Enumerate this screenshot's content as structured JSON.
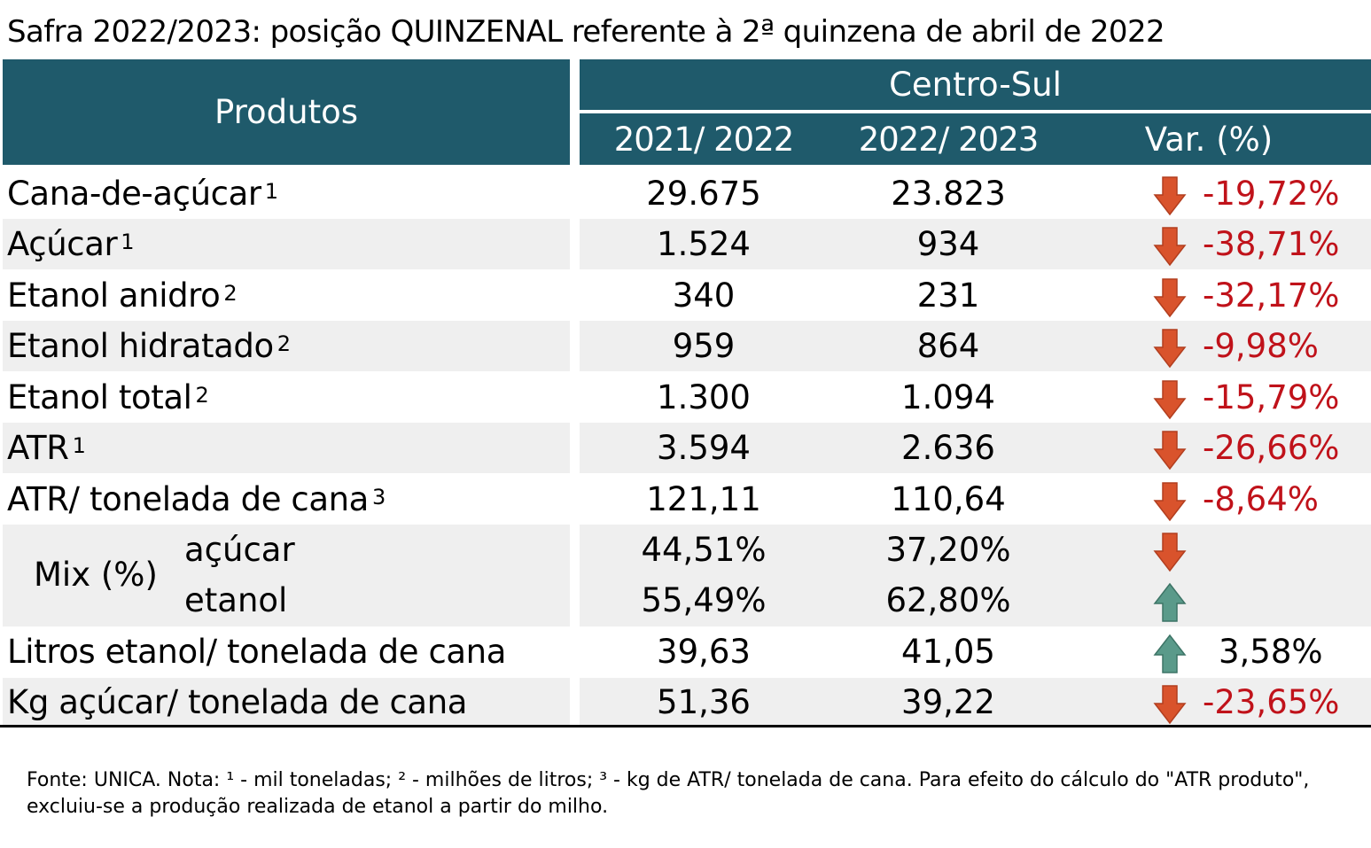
{
  "title": "Safra 2022/2023: posição QUINZENAL referente à 2ª quinzena de abril de 2022",
  "header": {
    "produtos": "Produtos",
    "region": "Centro-Sul",
    "col1": "2021/ 2022",
    "col2": "2022/ 2023",
    "col3": "Var. (%)"
  },
  "rows": [
    {
      "label": "Cana-de-açúcar",
      "sup": "1",
      "v1": "29.675",
      "v2": "23.823",
      "var": "-19,72%",
      "dir": "down"
    },
    {
      "label": "Açúcar",
      "sup": "1",
      "v1": "1.524",
      "v2": "934",
      "var": "-38,71%",
      "dir": "down"
    },
    {
      "label": "Etanol anidro",
      "sup": "2",
      "v1": "340",
      "v2": "231",
      "var": "-32,17%",
      "dir": "down"
    },
    {
      "label": "Etanol hidratado",
      "sup": "2",
      "v1": "959",
      "v2": "864",
      "var": "-9,98%",
      "dir": "down"
    },
    {
      "label": "Etanol total",
      "sup": "2",
      "v1": "1.300",
      "v2": "1.094",
      "var": "-15,79%",
      "dir": "down"
    },
    {
      "label": "ATR",
      "sup": "1",
      "v1": "3.594",
      "v2": "2.636",
      "var": "-26,66%",
      "dir": "down"
    },
    {
      "label": "ATR/ tonelada de cana",
      "sup": "3",
      "v1": "121,11",
      "v2": "110,64",
      "var": "-8,64%",
      "dir": "down"
    }
  ],
  "mix": {
    "label": "Mix (%)",
    "acucar": {
      "label": "açúcar",
      "v1": "44,51%",
      "v2": "37,20%",
      "dir": "down"
    },
    "etanol": {
      "label": "etanol",
      "v1": "55,49%",
      "v2": "62,80%",
      "dir": "up"
    }
  },
  "litros": {
    "label": "Litros etanol/ tonelada de cana",
    "v1": "39,63",
    "v2": "41,05",
    "var": "3,58%",
    "dir": "up"
  },
  "kg": {
    "label": "Kg açúcar/ tonelada de cana",
    "v1": "51,36",
    "v2": "39,22",
    "var": "-23,65%",
    "dir": "down"
  },
  "note": "Fonte: UNICA. Nota: ¹ - mil toneladas; ² - milhões de litros; ³ - kg de ATR/ tonelada de cana. Para efeito do cálculo do \"ATR produto\", excluiu-se a produção realizada de etanol a partir do milho.",
  "colors": {
    "header": "#1f5a6b",
    "stripe": "#efefef",
    "negative": "#c0121a",
    "arrow_down": "#d9532c",
    "arrow_up": "#5a9a8a"
  }
}
